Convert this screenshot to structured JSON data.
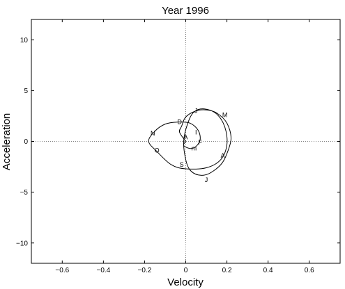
{
  "chart_data": {
    "type": "line",
    "title": "Year 1996",
    "xlabel": "Velocity",
    "ylabel": "Acceleration",
    "xlim": [
      -0.75,
      0.75
    ],
    "ylim": [
      -12,
      12
    ],
    "xticks": [
      -0.6,
      -0.4,
      -0.2,
      0,
      0.2,
      0.4,
      0.6
    ],
    "xtick_labels": [
      "−0.6",
      "−0.4",
      "−0.2",
      "0",
      "0.2",
      "0.4",
      "0.6"
    ],
    "yticks": [
      10,
      5,
      0,
      -5,
      -10
    ],
    "ytick_labels": [
      "10",
      "5",
      "0",
      "−5",
      "−10"
    ],
    "reference_lines": {
      "x0": true,
      "y0": true,
      "style": "dotted"
    },
    "grid": false,
    "line_color": "#000000",
    "trajectory": [
      {
        "x": 0.0,
        "y": 0.0
      },
      {
        "x": -0.03,
        "y": 0.9
      },
      {
        "x": -0.02,
        "y": 1.5
      },
      {
        "x": 0.0,
        "y": 2.4
      },
      {
        "x": 0.05,
        "y": 3.0
      },
      {
        "x": 0.1,
        "y": 3.1
      },
      {
        "x": 0.15,
        "y": 2.8
      },
      {
        "x": 0.2,
        "y": 1.8
      },
      {
        "x": 0.22,
        "y": 0.3
      },
      {
        "x": 0.2,
        "y": -1.2
      },
      {
        "x": 0.17,
        "y": -2.3
      },
      {
        "x": 0.11,
        "y": -3.2
      },
      {
        "x": 0.06,
        "y": -3.3
      },
      {
        "x": 0.02,
        "y": -2.8
      },
      {
        "x": 0.0,
        "y": -1.8
      },
      {
        "x": -0.01,
        "y": 0.0
      },
      {
        "x": 0.01,
        "y": 1.8
      },
      {
        "x": 0.04,
        "y": 2.9
      },
      {
        "x": 0.09,
        "y": 3.2
      },
      {
        "x": 0.15,
        "y": 2.7
      },
      {
        "x": 0.19,
        "y": 1.4
      },
      {
        "x": 0.2,
        "y": -0.3
      },
      {
        "x": 0.17,
        "y": -1.8
      },
      {
        "x": 0.1,
        "y": -2.6
      },
      {
        "x": 0.0,
        "y": -2.7
      },
      {
        "x": -0.07,
        "y": -2.3
      },
      {
        "x": -0.14,
        "y": -1.0
      },
      {
        "x": -0.18,
        "y": 0.0
      },
      {
        "x": -0.15,
        "y": 1.0
      },
      {
        "x": -0.1,
        "y": 1.7
      },
      {
        "x": -0.04,
        "y": 1.9
      },
      {
        "x": 0.02,
        "y": 1.8
      },
      {
        "x": 0.06,
        "y": 1.1
      },
      {
        "x": 0.07,
        "y": 0.2
      },
      {
        "x": 0.05,
        "y": -0.5
      },
      {
        "x": 0.02,
        "y": -0.7
      },
      {
        "x": -0.01,
        "y": -0.4
      },
      {
        "x": 0.0,
        "y": 0.0
      }
    ],
    "annotations": [
      {
        "text": "J",
        "x": 0.05,
        "y": 3.0
      },
      {
        "text": "M",
        "x": 0.19,
        "y": 2.6
      },
      {
        "text": "D",
        "x": -0.03,
        "y": 1.9
      },
      {
        "text": "N",
        "x": -0.16,
        "y": 0.8
      },
      {
        "text": "I",
        "x": 0.05,
        "y": 0.9
      },
      {
        "text": "A",
        "x": 0.0,
        "y": 0.4
      },
      {
        "text": "F",
        "x": 0.07,
        "y": -0.1
      },
      {
        "text": "m",
        "x": 0.04,
        "y": -0.7
      },
      {
        "text": "O",
        "x": -0.14,
        "y": -0.9
      },
      {
        "text": "A",
        "x": 0.18,
        "y": -1.4
      },
      {
        "text": "S",
        "x": -0.02,
        "y": -2.3
      },
      {
        "text": "J",
        "x": 0.1,
        "y": -3.8
      }
    ]
  }
}
